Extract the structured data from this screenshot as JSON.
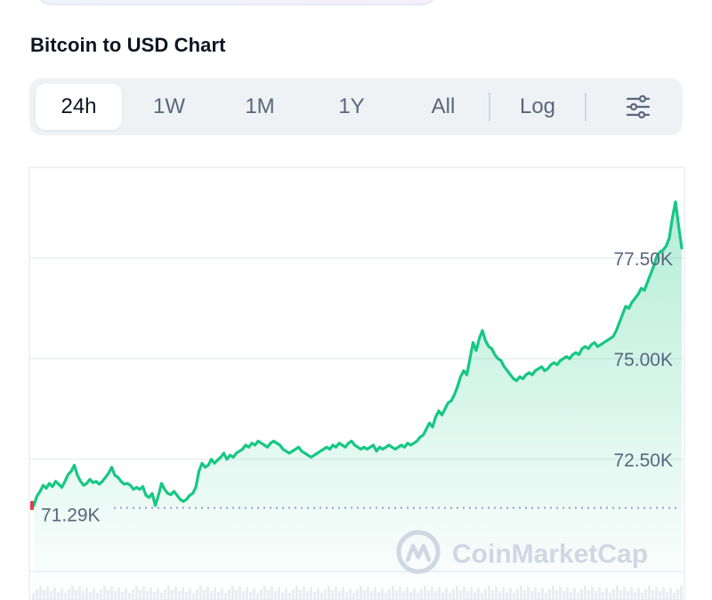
{
  "header": {
    "title": "Bitcoin to USD Chart"
  },
  "range_tabs": [
    {
      "label": "24h",
      "active": true
    },
    {
      "label": "1W",
      "active": false
    },
    {
      "label": "1M",
      "active": false
    },
    {
      "label": "1Y",
      "active": false
    },
    {
      "label": "All",
      "active": false
    }
  ],
  "log_label": "Log",
  "settings_icon": "sliders-icon",
  "watermark": {
    "text": "CoinMarketCap",
    "icon": "coinmarketcap-logo"
  },
  "colors": {
    "line": "#16c784",
    "fill_top": "#16c784",
    "grid": "#eff2f5",
    "label": "#58667e",
    "start_marker": "#ea3943"
  },
  "chart_data": {
    "type": "area",
    "title": "",
    "xlabel": "",
    "ylabel": "",
    "ylim": [
      69000,
      79800
    ],
    "yticks": [
      72500,
      75000,
      77500
    ],
    "ytick_labels": [
      "72.50K",
      "75.00K",
      "77.50K"
    ],
    "reference_line": {
      "value": 71290,
      "label": "71.29K",
      "style": "dotted"
    },
    "grid": true,
    "series": [
      {
        "values": [
          71350,
          71580,
          71700,
          71850,
          71780,
          71900,
          71820,
          71950,
          71880,
          71800,
          71950,
          72120,
          72200,
          72350,
          72100,
          71950,
          71850,
          71900,
          72000,
          71920,
          71950,
          71880,
          71950,
          72050,
          72150,
          72300,
          72100,
          72050,
          71950,
          71880,
          71900,
          71850,
          71750,
          71800,
          71750,
          71820,
          71600,
          71550,
          71650,
          71350,
          71600,
          71900,
          71750,
          71650,
          71620,
          71700,
          71600,
          71500,
          71450,
          71500,
          71600,
          71650,
          71800,
          72200,
          72400,
          72300,
          72350,
          72500,
          72400,
          72480,
          72550,
          72650,
          72500,
          72600,
          72550,
          72650,
          72700,
          72750,
          72850,
          72800,
          72900,
          72850,
          72950,
          72900,
          72850,
          72800,
          72900,
          72950,
          72900,
          72850,
          72750,
          72700,
          72650,
          72700,
          72750,
          72800,
          72700,
          72650,
          72600,
          72550,
          72600,
          72650,
          72700,
          72750,
          72800,
          72750,
          72850,
          72800,
          72900,
          72850,
          72800,
          72900,
          72950,
          72850,
          72800,
          72750,
          72800,
          72750,
          72800,
          72850,
          72700,
          72800,
          72750,
          72800,
          72850,
          72800,
          72750,
          72800,
          72850,
          72800,
          72900,
          72850,
          72900,
          72950,
          73050,
          73100,
          73250,
          73400,
          73300,
          73550,
          73700,
          73600,
          73750,
          73900,
          73950,
          74100,
          74300,
          74550,
          74700,
          74600,
          75000,
          75400,
          75200,
          75500,
          75700,
          75450,
          75300,
          75250,
          75100,
          75000,
          74950,
          74800,
          74700,
          74600,
          74500,
          74450,
          74550,
          74500,
          74600,
          74650,
          74600,
          74700,
          74750,
          74800,
          74700,
          74750,
          74850,
          74900,
          74850,
          74950,
          75000,
          75050,
          75000,
          75100,
          75150,
          75100,
          75250,
          75300,
          75250,
          75350,
          75400,
          75300,
          75350,
          75400,
          75450,
          75500,
          75550,
          75700,
          75900,
          76100,
          76300,
          76250,
          76400,
          76500,
          76600,
          76750,
          76700,
          76900,
          77100,
          77300,
          77550,
          77650,
          77700,
          77800,
          78000,
          78500,
          78900,
          78300,
          77750
        ]
      }
    ]
  }
}
